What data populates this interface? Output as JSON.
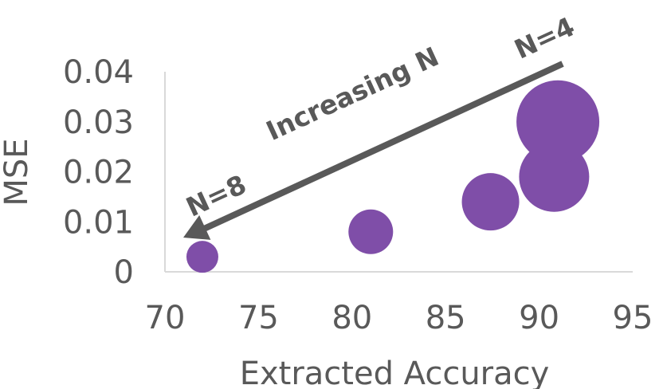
{
  "chart_data": {
    "type": "scatter",
    "xlabel": "Extracted Accuracy",
    "ylabel": "MSE",
    "xlim": [
      70,
      95
    ],
    "ylim": [
      0,
      0.04
    ],
    "x_ticks": [
      "70",
      "75",
      "80",
      "85",
      "90",
      "95"
    ],
    "y_ticks": [
      "0",
      "0.01",
      "0.02",
      "0.03",
      "0.04"
    ],
    "grid": false,
    "marker_color": "#7F4EA8",
    "points": [
      {
        "x": 72.0,
        "y": 0.003,
        "size": 1
      },
      {
        "x": 81.0,
        "y": 0.008,
        "size": 2
      },
      {
        "x": 87.4,
        "y": 0.014,
        "size": 3
      },
      {
        "x": 90.8,
        "y": 0.019,
        "size": 4
      },
      {
        "x": 91.0,
        "y": 0.03,
        "size": 5
      }
    ],
    "annotations": {
      "arrow_label": "Increasing N",
      "start_label": "N=4",
      "end_label": "N=8"
    }
  }
}
